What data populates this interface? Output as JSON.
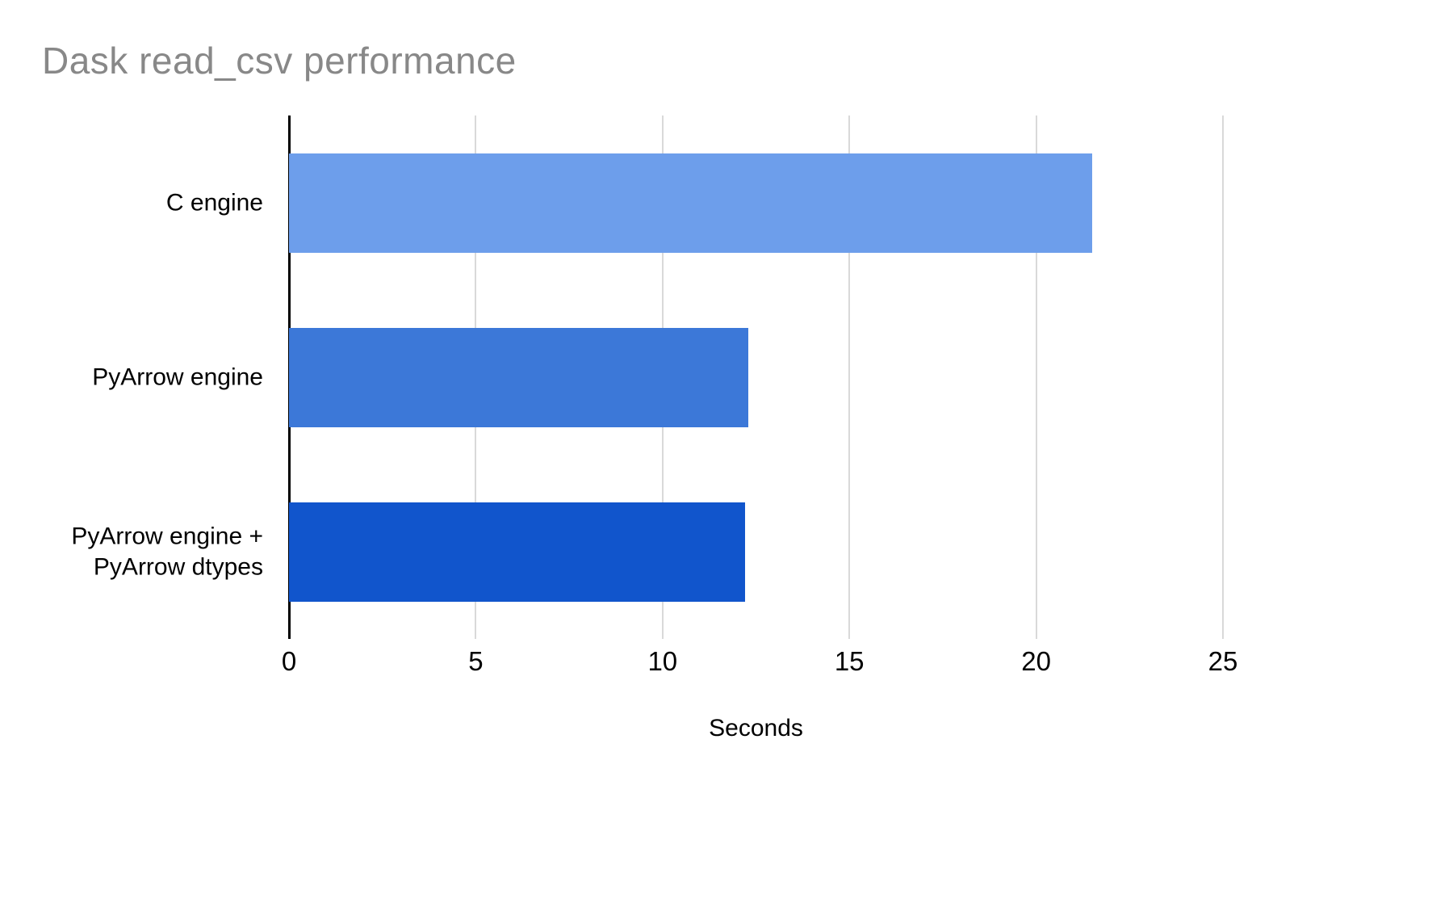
{
  "chart_data": {
    "type": "bar",
    "orientation": "horizontal",
    "title": "Dask read_csv performance",
    "title_color": "#888888",
    "xlabel": "Seconds",
    "ylabel": "",
    "xlim": [
      0,
      25
    ],
    "xticks": [
      0,
      5,
      10,
      15,
      20,
      25
    ],
    "grid": "vertical gridlines at xticks",
    "legend": "none",
    "categories": [
      "C engine",
      "PyArrow engine",
      "PyArrow engine +\nPyArrow dtypes"
    ],
    "values": [
      21.5,
      12.3,
      12.2
    ],
    "bar_colors": [
      "#6d9eeb",
      "#3c78d8",
      "#1155cc"
    ],
    "gridline_color": "#d9d9d9",
    "axis_line_color": "#000000"
  }
}
